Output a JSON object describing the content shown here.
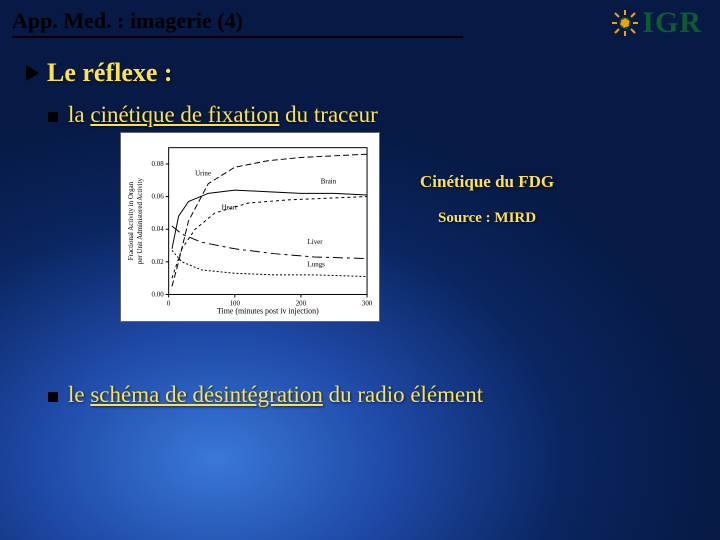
{
  "header": {
    "title": "App. Med. : imagerie (4)"
  },
  "logo": {
    "text": "IGR",
    "color": "#0b5c2e"
  },
  "lvl1": "Le réflexe :",
  "bullet1": {
    "prefix": "la ",
    "under": "cinétique de fixation",
    "suffix": " du traceur"
  },
  "caption": {
    "line1": "Cinétique du FDG",
    "line2": "Source : MIRD"
  },
  "bullet2": {
    "prefix": "le ",
    "under": "schéma de désintégration",
    "suffix": " du radio élément"
  },
  "chart": {
    "xlabel": "Time (minutes post iv injection)",
    "ylabel": "Fractional Activity in Organ per Unit Administered Activity",
    "xlim": [
      0,
      300
    ],
    "ylim": [
      0,
      0.09
    ],
    "xticks": [
      0,
      100,
      200,
      300
    ],
    "yticks": [
      0,
      0.02,
      0.04,
      0.06,
      0.08
    ],
    "bg": "#ffffff",
    "axis_color": "#000000",
    "series": [
      {
        "label": "Urine",
        "dash": "6,3",
        "pts": [
          [
            5,
            0.005
          ],
          [
            15,
            0.02
          ],
          [
            30,
            0.045
          ],
          [
            60,
            0.068
          ],
          [
            100,
            0.078
          ],
          [
            150,
            0.082
          ],
          [
            200,
            0.084
          ],
          [
            250,
            0.085
          ],
          [
            300,
            0.086
          ]
        ]
      },
      {
        "label": "Heart",
        "dash": "none",
        "pts": [
          [
            5,
            0.028
          ],
          [
            15,
            0.048
          ],
          [
            30,
            0.057
          ],
          [
            60,
            0.062
          ],
          [
            100,
            0.064
          ],
          [
            150,
            0.063
          ],
          [
            200,
            0.062
          ],
          [
            250,
            0.062
          ],
          [
            300,
            0.061
          ]
        ]
      },
      {
        "label": "Brain",
        "dash": "3,3",
        "pts": [
          [
            5,
            0.01
          ],
          [
            20,
            0.028
          ],
          [
            40,
            0.04
          ],
          [
            70,
            0.05
          ],
          [
            120,
            0.056
          ],
          [
            180,
            0.058
          ],
          [
            240,
            0.059
          ],
          [
            300,
            0.06
          ]
        ]
      },
      {
        "label": "Liver",
        "dash": "10,4,3,4",
        "pts": [
          [
            5,
            0.042
          ],
          [
            20,
            0.037
          ],
          [
            50,
            0.032
          ],
          [
            100,
            0.028
          ],
          [
            160,
            0.025
          ],
          [
            220,
            0.023
          ],
          [
            300,
            0.022
          ]
        ]
      },
      {
        "label": "Lungs",
        "dash": "2,2",
        "pts": [
          [
            5,
            0.027
          ],
          [
            20,
            0.02
          ],
          [
            50,
            0.015
          ],
          [
            100,
            0.013
          ],
          [
            160,
            0.012
          ],
          [
            220,
            0.012
          ],
          [
            300,
            0.011
          ]
        ]
      }
    ],
    "label_positions": {
      "Urine": [
        40,
        0.073
      ],
      "Heart": [
        80,
        0.052
      ],
      "Brain": [
        230,
        0.068
      ],
      "Liver": [
        210,
        0.031
      ],
      "Lungs": [
        210,
        0.017
      ]
    },
    "font_size_axis": 7,
    "font_size_series": 7
  }
}
